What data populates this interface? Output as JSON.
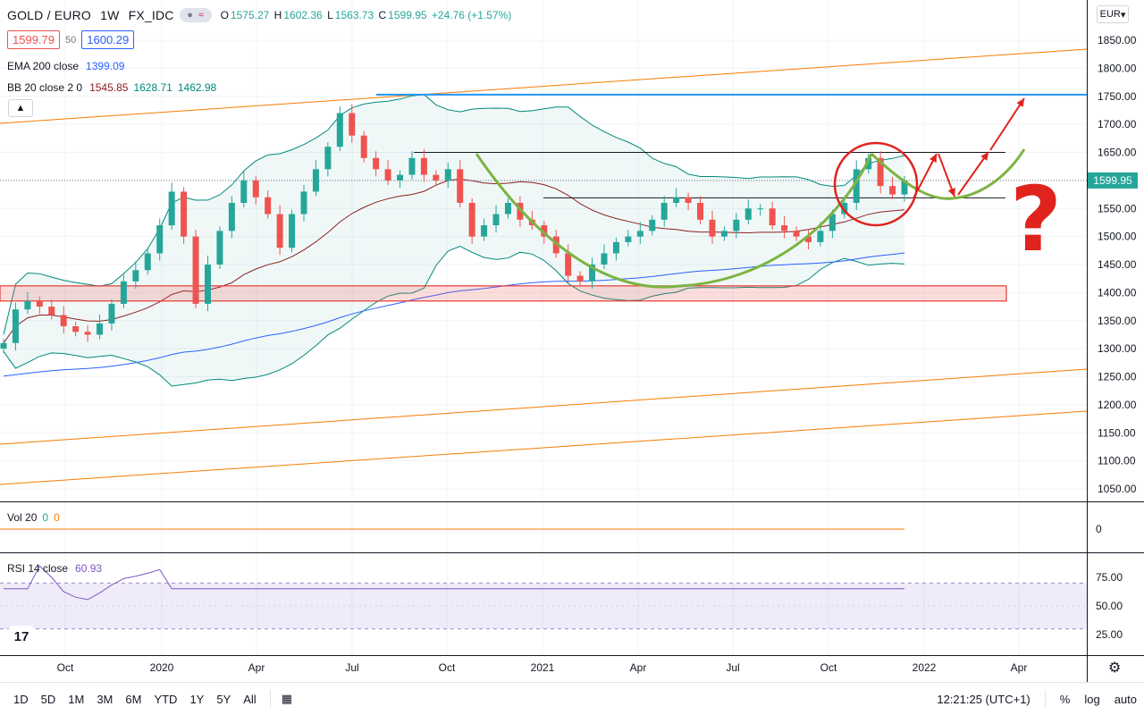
{
  "header": {
    "symbol": "GOLD / EURO",
    "interval": "1W",
    "source": "FX_IDC",
    "ohlc": {
      "o_label": "O",
      "o": "1575.27",
      "h_label": "H",
      "h": "1602.36",
      "l_label": "L",
      "l": "1563.73",
      "c_label": "C",
      "c": "1599.95",
      "change": "+24.76 (+1.57%)"
    },
    "bid": "1599.79",
    "spread": "50",
    "ask": "1600.29"
  },
  "indicators": {
    "ema": {
      "name": "EMA 200 close",
      "value": "1399.09"
    },
    "bb": {
      "name": "BB 20 close 2 0",
      "basis": "1545.85",
      "upper": "1628.71",
      "lower": "1462.98"
    },
    "vol": {
      "name": "Vol 20",
      "v1": "0",
      "v2": "0"
    },
    "rsi": {
      "name": "RSI 14 close",
      "value": "60.93"
    }
  },
  "currency_button": "EUR",
  "colors": {
    "up": "#26a69a",
    "down": "#ef5350",
    "ema": "#2962ff",
    "bb_basis": "#8b2020",
    "bb_band": "#00897b",
    "rsi": "#7e57c2",
    "trend": "#f57c00",
    "resistance": "#2196f3",
    "cup": "#7cb342",
    "annotation": "#e0231c",
    "support_zone": "#ef5350"
  },
  "price_axis": {
    "ticks": [
      "1850.00",
      "1800.00",
      "1750.00",
      "1700.00",
      "1650.00",
      "1600.00",
      "1550.00",
      "1500.00",
      "1450.00",
      "1400.00",
      "1350.00",
      "1300.00",
      "1250.00",
      "1200.00",
      "1150.00",
      "1100.00",
      "1050.00"
    ],
    "last_price": "1599.95"
  },
  "vol_axis": {
    "ticks": [
      "0"
    ]
  },
  "rsi_axis": {
    "ticks": [
      "75.00",
      "50.00",
      "25.00"
    ]
  },
  "time_axis": {
    "labels": [
      "Oct",
      "2020",
      "Apr",
      "Jul",
      "Oct",
      "2021",
      "Apr",
      "Jul",
      "Oct",
      "2022",
      "Apr"
    ]
  },
  "annotation": {
    "question": "?"
  },
  "logo": "17",
  "bottom": {
    "timeframes": [
      "1D",
      "5D",
      "1M",
      "3M",
      "6M",
      "YTD",
      "1Y",
      "5Y",
      "All"
    ],
    "clock": "12:21:25 (UTC+1)",
    "percent": "%",
    "log": "log",
    "auto": "auto"
  },
  "chart_data": {
    "type": "candlestick",
    "x_range": [
      "2019-08",
      "2022-05"
    ],
    "y_range": [
      1020,
      1880
    ],
    "log_scale": false,
    "grid": true,
    "support_zone": [
      1385,
      1412
    ],
    "resistance_level": 1753,
    "horizontal_levels": [
      1650,
      1569
    ],
    "rsi_band": [
      30,
      70
    ],
    "closes_approx": [
      1310,
      1370,
      1385,
      1375,
      1360,
      1340,
      1330,
      1325,
      1345,
      1380,
      1420,
      1440,
      1470,
      1520,
      1580,
      1500,
      1380,
      1450,
      1510,
      1560,
      1600,
      1570,
      1540,
      1480,
      1540,
      1580,
      1620,
      1660,
      1720,
      1680,
      1640,
      1620,
      1600,
      1610,
      1640,
      1610,
      1600,
      1620,
      1560,
      1500,
      1520,
      1540,
      1560,
      1530,
      1520,
      1500,
      1470,
      1430,
      1420,
      1450,
      1470,
      1490,
      1500,
      1510,
      1530,
      1560,
      1570,
      1560,
      1530,
      1500,
      1510,
      1530,
      1550,
      1550,
      1520,
      1510,
      1500,
      1490,
      1510,
      1540,
      1560,
      1620,
      1640,
      1590,
      1575,
      1600
    ]
  }
}
